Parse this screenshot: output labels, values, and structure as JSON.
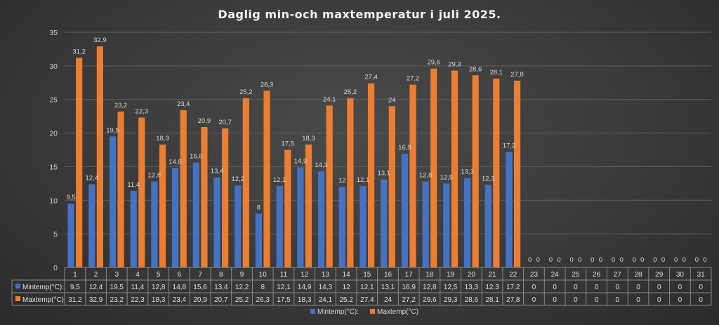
{
  "chart_data": {
    "type": "bar",
    "title": "Daglig min-och maxtemperatur i juli 2025.",
    "xlabel": "",
    "ylabel": "",
    "ylim": [
      0,
      35
    ],
    "yticks": [
      0,
      5,
      10,
      15,
      20,
      25,
      30,
      35
    ],
    "grid": true,
    "legend_position": "bottom",
    "data_table": true,
    "categories": [
      "1",
      "2",
      "3",
      "4",
      "5",
      "6",
      "7",
      "8",
      "9",
      "10",
      "11",
      "12",
      "13",
      "14",
      "15",
      "16",
      "17",
      "18",
      "19",
      "20",
      "21",
      "22",
      "23",
      "24",
      "25",
      "26",
      "27",
      "28",
      "29",
      "30",
      "31"
    ],
    "series": [
      {
        "name": "Mintemp(°C):",
        "color": "#4472c4",
        "values": [
          9.5,
          12.4,
          19.5,
          11.4,
          12.8,
          14.8,
          15.6,
          13.4,
          12.2,
          8,
          12.1,
          14.9,
          14.3,
          12,
          12.1,
          13.1,
          16.9,
          12.8,
          12.5,
          13.3,
          12.3,
          17.2,
          0,
          0,
          0,
          0,
          0,
          0,
          0,
          0,
          0
        ],
        "labels": [
          "9,5",
          "12,4",
          "19,5",
          "11,4",
          "12,8",
          "14,8",
          "15,6",
          "13,4",
          "12,2",
          "8",
          "12,1",
          "14,9",
          "14,3",
          "12",
          "12,1",
          "13,1",
          "16,9",
          "12,8",
          "12,5",
          "13,3",
          "12,3",
          "17,2",
          "0",
          "0",
          "0",
          "0",
          "0",
          "0",
          "0",
          "0",
          "0"
        ]
      },
      {
        "name": "Maxtemp(°C)",
        "color": "#ed7d31",
        "values": [
          31.2,
          32.9,
          23.2,
          22.3,
          18.3,
          23.4,
          20.9,
          20.7,
          25.2,
          26.3,
          17.5,
          18.3,
          24.1,
          25.2,
          27.4,
          24,
          27.2,
          29.6,
          29.3,
          28.6,
          28.1,
          27.8,
          0,
          0,
          0,
          0,
          0,
          0,
          0,
          0,
          0
        ],
        "labels": [
          "31,2",
          "32,9",
          "23,2",
          "22,3",
          "18,3",
          "23,4",
          "20,9",
          "20,7",
          "25,2",
          "26,3",
          "17,5",
          "18,3",
          "24,1",
          "25,2",
          "27,4",
          "24",
          "27,2",
          "29,6",
          "29,3",
          "28,6",
          "28,1",
          "27,8",
          "0",
          "0",
          "0",
          "0",
          "0",
          "0",
          "0",
          "0",
          "0"
        ]
      }
    ]
  }
}
